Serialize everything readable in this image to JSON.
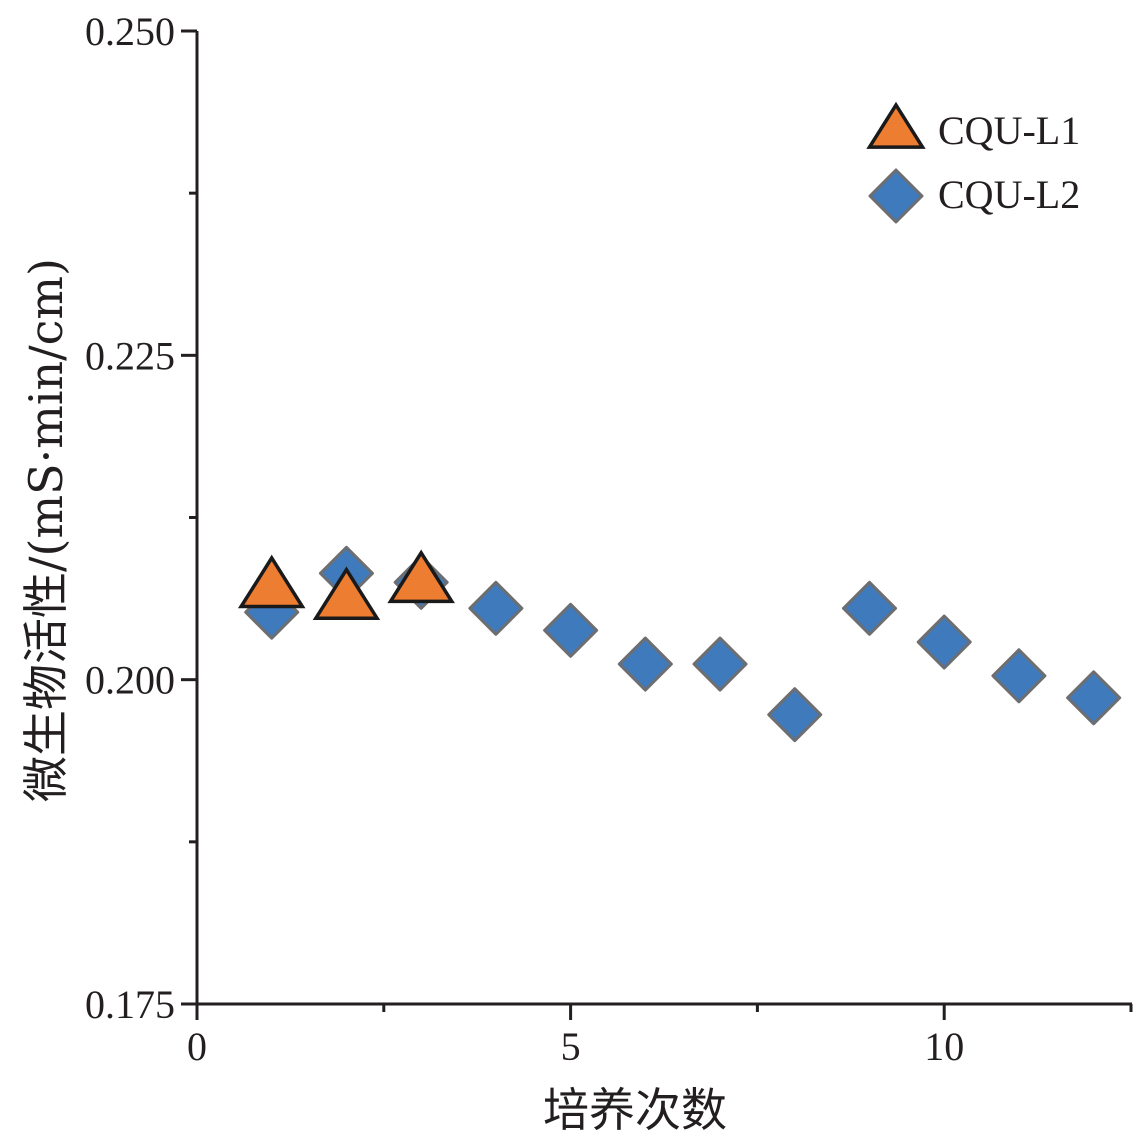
{
  "chart_data": {
    "type": "scatter",
    "xlabel": "培养次数",
    "ylabel": "微生物活性/(mS·min/cm)",
    "xlim": [
      0,
      12.5
    ],
    "ylim": [
      0.175,
      0.25
    ],
    "x_ticks": [
      0,
      5,
      10
    ],
    "x_tick_labels": [
      "0",
      "5",
      "10"
    ],
    "y_ticks": [
      0.175,
      0.2,
      0.225,
      0.25
    ],
    "y_tick_labels": [
      "0.175",
      "0.200",
      "0.225",
      "0.250"
    ],
    "x_minor_ticks": [
      2.5,
      7.5,
      12.5
    ],
    "y_minor_ticks": [
      0.1875,
      0.2125,
      0.2375
    ],
    "grid": false,
    "legend_position": "top-right",
    "series": [
      {
        "name": "CQU-L1",
        "marker": "triangle",
        "color": "#ed7d31",
        "edge_color": "#1a1a1a",
        "x": [
          1,
          2,
          3
        ],
        "y": [
          0.2073,
          0.2064,
          0.2077
        ]
      },
      {
        "name": "CQU-L2",
        "marker": "diamond",
        "color": "#3e7abc",
        "edge_color": "#6d6e71",
        "x": [
          1,
          2,
          3,
          4,
          5,
          6,
          7,
          8,
          9,
          10,
          11,
          12
        ],
        "y": [
          0.2052,
          0.2082,
          0.2075,
          0.2055,
          0.2038,
          0.2012,
          0.2012,
          0.1973,
          0.2055,
          0.2029,
          0.2003,
          0.1986
        ]
      }
    ]
  }
}
